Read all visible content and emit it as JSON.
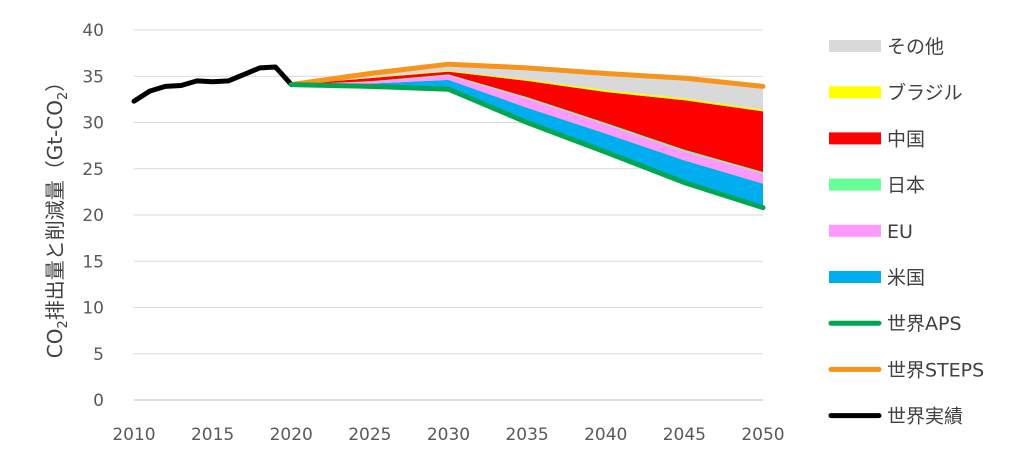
{
  "chart_data": {
    "type": "area",
    "ylabel": "CO2排出量と削減量（Gt-CO2）",
    "ylabel_parts": {
      "a": "CO",
      "b": "2",
      "c": "排出量と削減量（Gt-CO",
      "d": "2",
      "e": "）"
    },
    "ylim": [
      0,
      40
    ],
    "xlim": [
      2010,
      2050
    ],
    "yticks": [
      "0",
      "5",
      "10",
      "15",
      "20",
      "25",
      "30",
      "35",
      "40"
    ],
    "xticks": [
      "2010",
      "2015",
      "2020",
      "2025",
      "2030",
      "2035",
      "2040",
      "2045",
      "2050"
    ],
    "grid": true,
    "legend_position": "right",
    "series": [
      {
        "name": "世界実績",
        "kind": "line",
        "color": "#000000",
        "x": [
          2010,
          2011,
          2012,
          2013,
          2014,
          2015,
          2016,
          2017,
          2018,
          2019,
          2020
        ],
        "y": [
          32.3,
          33.4,
          33.9,
          34.0,
          34.5,
          34.4,
          34.5,
          35.2,
          35.9,
          36.0,
          34.1
        ]
      },
      {
        "name": "世界STEPS",
        "kind": "line",
        "color": "#f7941d",
        "x": [
          2020,
          2025,
          2030,
          2035,
          2040,
          2045,
          2050
        ],
        "y": [
          34.1,
          35.3,
          36.3,
          35.9,
          35.3,
          34.8,
          33.9
        ]
      },
      {
        "name": "世界APS",
        "kind": "line",
        "color": "#00a651",
        "x": [
          2020,
          2025,
          2030,
          2035,
          2040,
          2045,
          2050
        ],
        "y": [
          34.1,
          33.9,
          33.6,
          30.0,
          26.8,
          23.5,
          20.8
        ]
      },
      {
        "name": "米国",
        "kind": "area",
        "color": "#00aeef",
        "x": [
          2020,
          2025,
          2030,
          2035,
          2040,
          2045,
          2050
        ],
        "lower": [
          34.1,
          33.9,
          33.6,
          30.0,
          26.8,
          23.5,
          20.8
        ],
        "upper": [
          34.1,
          34.2,
          34.6,
          31.6,
          28.8,
          25.9,
          23.4
        ]
      },
      {
        "name": "EU",
        "kind": "area",
        "color": "#ff99ff",
        "x": [
          2020,
          2025,
          2030,
          2035,
          2040,
          2045,
          2050
        ],
        "lower": [
          34.1,
          34.2,
          34.6,
          31.6,
          28.8,
          25.9,
          23.4
        ],
        "upper": [
          34.1,
          34.4,
          35.1,
          32.6,
          29.8,
          26.9,
          24.5
        ]
      },
      {
        "name": "日本",
        "kind": "area",
        "color": "#66ff99",
        "x": [
          2020,
          2025,
          2030,
          2035,
          2040,
          2045,
          2050
        ],
        "lower": [
          34.1,
          34.4,
          35.1,
          32.6,
          29.8,
          26.9,
          24.5
        ],
        "upper": [
          34.1,
          34.45,
          35.2,
          32.75,
          29.95,
          27.05,
          24.65
        ]
      },
      {
        "name": "中国",
        "kind": "area",
        "color": "#ff0000",
        "x": [
          2020,
          2025,
          2030,
          2035,
          2040,
          2045,
          2050
        ],
        "lower": [
          34.1,
          34.45,
          35.2,
          32.75,
          29.95,
          27.05,
          24.65
        ],
        "upper": [
          34.1,
          34.8,
          35.5,
          34.5,
          33.3,
          32.4,
          31.2
        ]
      },
      {
        "name": "ブラジル",
        "kind": "area",
        "color": "#ffff00",
        "x": [
          2020,
          2025,
          2030,
          2035,
          2040,
          2045,
          2050
        ],
        "lower": [
          34.1,
          34.8,
          35.5,
          34.5,
          33.3,
          32.4,
          31.2
        ],
        "upper": [
          34.1,
          34.85,
          35.6,
          34.65,
          33.5,
          32.6,
          31.4
        ]
      },
      {
        "name": "その他",
        "kind": "area",
        "color": "#d9d9d9",
        "x": [
          2020,
          2025,
          2030,
          2035,
          2040,
          2045,
          2050
        ],
        "lower": [
          34.1,
          34.85,
          35.6,
          34.65,
          33.5,
          32.6,
          31.4
        ],
        "upper": [
          34.1,
          35.3,
          36.3,
          35.9,
          35.3,
          34.8,
          33.9
        ]
      }
    ],
    "legend": [
      {
        "label": "その他",
        "swatch": "box",
        "color": "#d9d9d9"
      },
      {
        "label": "ブラジル",
        "swatch": "box",
        "color": "#ffff00"
      },
      {
        "label": "中国",
        "swatch": "box",
        "color": "#ff0000"
      },
      {
        "label": "日本",
        "swatch": "box",
        "color": "#66ff99"
      },
      {
        "label": "EU",
        "swatch": "box",
        "color": "#ff99ff"
      },
      {
        "label": "米国",
        "swatch": "box",
        "color": "#00aeef"
      },
      {
        "label": "世界APS",
        "swatch": "line",
        "color": "#00a651"
      },
      {
        "label": "世界STEPS",
        "swatch": "line",
        "color": "#f7941d"
      },
      {
        "label": "世界実績",
        "swatch": "line",
        "color": "#000000"
      }
    ]
  }
}
